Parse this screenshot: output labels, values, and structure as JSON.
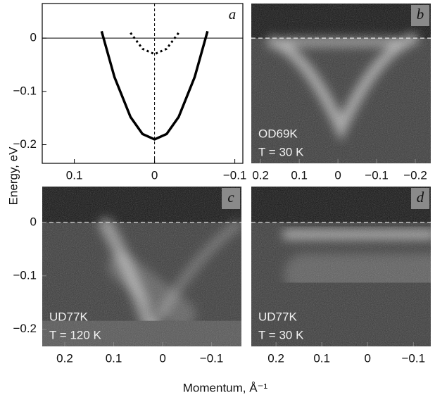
{
  "ylabel": "Energy, eV",
  "xlabel": "Momentum, Å⁻¹",
  "chart_data": [
    {
      "type": "line",
      "label": "a",
      "xlim": [
        0.14,
        -0.11
      ],
      "ylim": [
        -0.235,
        0.065
      ],
      "xticks": [
        0.1,
        0,
        {
          "value": -0.1,
          "label": "−0.1"
        }
      ],
      "yticks": [
        0,
        {
          "value": -0.1,
          "label": "−0.1"
        },
        {
          "value": -0.2,
          "label": "−0.2"
        }
      ],
      "series": [
        {
          "color": "#000000",
          "style": "solid",
          "x": [
            0.066,
            0.05,
            0.03,
            0.015,
            0,
            -0.015,
            -0.03,
            -0.05,
            -0.066
          ],
          "values": [
            0.013,
            -0.073,
            -0.148,
            -0.18,
            -0.19,
            -0.18,
            -0.148,
            -0.073,
            0.013
          ]
        },
        {
          "color": "#000000",
          "style": "dotted",
          "x": [
            0.03,
            0.015,
            0,
            -0.015,
            -0.03
          ],
          "values": [
            0.01,
            -0.02,
            -0.03,
            -0.02,
            0.01
          ]
        }
      ]
    },
    {
      "type": "image",
      "label": "b",
      "xlim": [
        0.224,
        -0.24
      ],
      "ylim": [
        -0.235,
        0.065
      ],
      "xticks": [
        0.2,
        0.1,
        0,
        {
          "value": -0.1,
          "label": "−0.1"
        },
        {
          "value": -0.2,
          "label": "−0.2"
        }
      ],
      "annotations": [
        "OD69K",
        "T = 30 K"
      ]
    },
    {
      "type": "image",
      "label": "c",
      "xlim": [
        0.246,
        -0.161
      ],
      "ylim": [
        -0.232,
        0.067
      ],
      "xticks": [
        0.2,
        0.1,
        0,
        {
          "value": -0.1,
          "label": "−0.1"
        }
      ],
      "yticks": [
        0,
        {
          "value": -0.1,
          "label": "−0.1"
        },
        {
          "value": -0.2,
          "label": "−0.2"
        }
      ],
      "annotations": [
        "UD77K",
        "T = 120 K"
      ]
    },
    {
      "type": "image",
      "label": "d",
      "xlim": [
        0.254,
        -0.138
      ],
      "ylim": [
        -0.232,
        0.067
      ],
      "xticks": [
        0.2,
        0.1,
        0,
        {
          "value": -0.1,
          "label": "−0.1"
        }
      ],
      "annotations": [
        "UD77K",
        "T = 30 K"
      ]
    }
  ]
}
